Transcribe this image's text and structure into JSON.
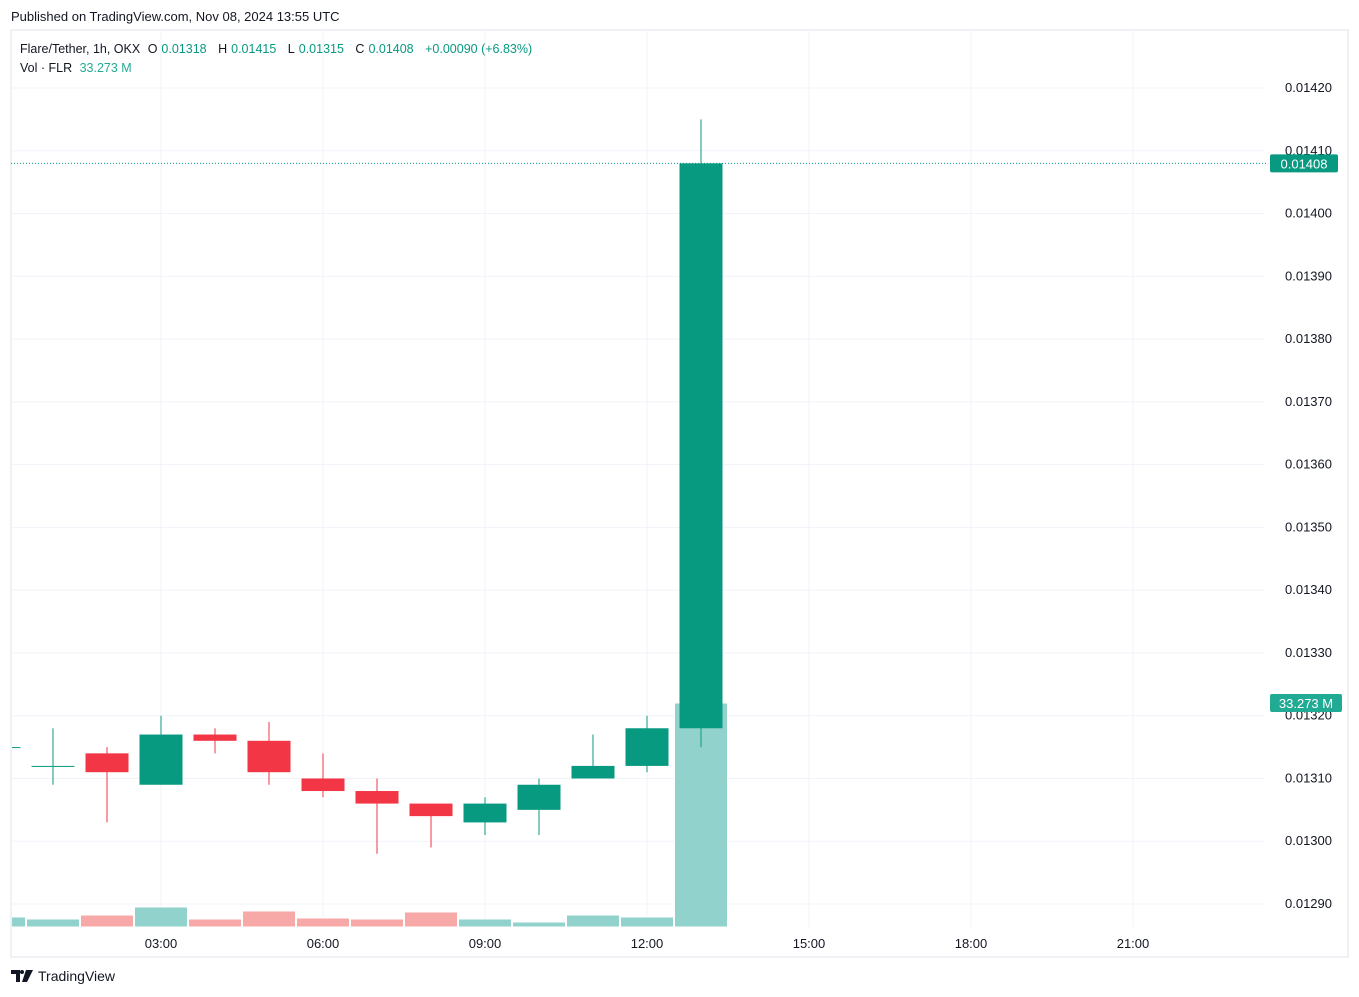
{
  "header": {
    "published": "Published on TradingView.com, Nov 08, 2024 13:55 UTC"
  },
  "legend": {
    "symbol": "Flare/Tether, 1h, OKX",
    "o_label": "O",
    "o": "0.01318",
    "h_label": "H",
    "h": "0.01415",
    "l_label": "L",
    "l": "0.01315",
    "c_label": "C",
    "c": "0.01408",
    "change": "+0.00090 (+6.83%)",
    "vol_label": "Vol · FLR",
    "vol": "33.273 M"
  },
  "footer": {
    "brand": "TradingView",
    "logo_icon": "tradingview-logo-icon"
  },
  "colors": {
    "up": "#089981",
    "down": "#f23645",
    "vol_up": "#92d2cc",
    "vol_down": "#f7a9a7",
    "grid": "#f0f3fa"
  },
  "chart_data": {
    "type": "candlestick",
    "interval": "1h",
    "x_ticks": [
      "03:00",
      "06:00",
      "09:00",
      "12:00",
      "15:00",
      "18:00",
      "21:00"
    ],
    "y_ticks": [
      "0.01420",
      "0.01410",
      "0.01400",
      "0.01390",
      "0.01380",
      "0.01370",
      "0.01360",
      "0.01350",
      "0.01340",
      "0.01330",
      "0.01320",
      "0.01310",
      "0.01300",
      "0.01290"
    ],
    "ylim": [
      0.01285,
      0.01425
    ],
    "grid": true,
    "last_price_label": "0.01408",
    "last_volume_label": "33.273 M",
    "candles": [
      {
        "t": "00:00",
        "o": 0.01315,
        "h": 0.01315,
        "l": 0.01315,
        "c": 0.01315,
        "v": 1.49
      },
      {
        "t": "01:00",
        "o": 0.01312,
        "h": 0.01318,
        "l": 0.01309,
        "c": 0.01312,
        "v": 1.19
      },
      {
        "t": "02:00",
        "o": 0.01314,
        "h": 0.01315,
        "l": 0.01303,
        "c": 0.01311,
        "v": 1.78
      },
      {
        "t": "03:00",
        "o": 0.01309,
        "h": 0.0132,
        "l": 0.01309,
        "c": 0.01317,
        "v": 2.97
      },
      {
        "t": "04:00",
        "o": 0.01317,
        "h": 0.01318,
        "l": 0.01314,
        "c": 0.01316,
        "v": 1.19
      },
      {
        "t": "05:00",
        "o": 0.01316,
        "h": 0.01319,
        "l": 0.01309,
        "c": 0.01311,
        "v": 2.38
      },
      {
        "t": "06:00",
        "o": 0.0131,
        "h": 0.01314,
        "l": 0.01307,
        "c": 0.01308,
        "v": 1.34
      },
      {
        "t": "07:00",
        "o": 0.01308,
        "h": 0.0131,
        "l": 0.01298,
        "c": 0.01306,
        "v": 1.19
      },
      {
        "t": "08:00",
        "o": 0.01306,
        "h": 0.01306,
        "l": 0.01299,
        "c": 0.01304,
        "v": 2.23
      },
      {
        "t": "09:00",
        "o": 0.01303,
        "h": 0.01307,
        "l": 0.01301,
        "c": 0.01306,
        "v": 1.19
      },
      {
        "t": "10:00",
        "o": 0.01305,
        "h": 0.0131,
        "l": 0.01301,
        "c": 0.01309,
        "v": 0.74
      },
      {
        "t": "11:00",
        "o": 0.0131,
        "h": 0.01317,
        "l": 0.0131,
        "c": 0.01312,
        "v": 1.78
      },
      {
        "t": "12:00",
        "o": 0.01312,
        "h": 0.0132,
        "l": 0.01311,
        "c": 0.01318,
        "v": 1.49
      },
      {
        "t": "13:00",
        "o": 0.01318,
        "h": 0.01415,
        "l": 0.01315,
        "c": 0.01408,
        "v": 33.273
      }
    ],
    "volume_unit": "M"
  }
}
